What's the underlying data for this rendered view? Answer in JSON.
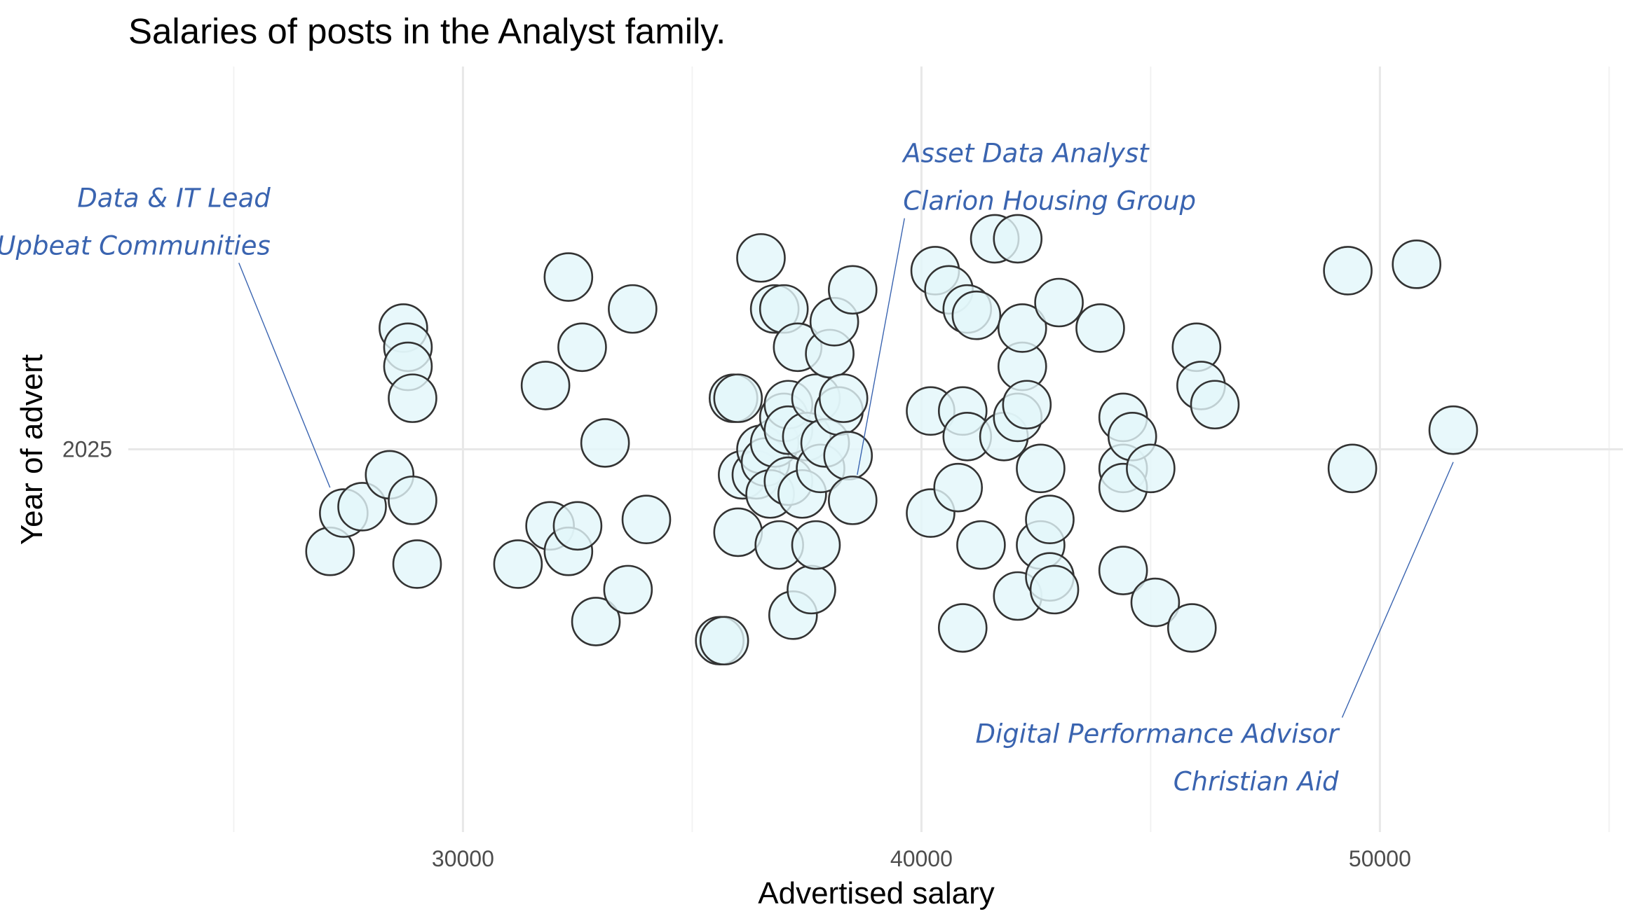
{
  "chart_data": {
    "type": "scatter",
    "title": "Salaries of posts in the Analyst family.",
    "xlabel": "Advertised salary",
    "ylabel": "Year of advert",
    "xlim": [
      22700,
      55300
    ],
    "ylim": [
      2024.4,
      2025.6
    ],
    "x_ticks": [
      30000,
      40000,
      50000
    ],
    "x_tick_labels": [
      "30000",
      "40000",
      "50000"
    ],
    "y_ticks": [
      2025
    ],
    "y_tick_labels": [
      "2025"
    ],
    "grid": true,
    "legend": "none",
    "point_fill": "#e2f6fa",
    "point_stroke": "#333333",
    "annotation_color": "#3a64b0",
    "points": [
      {
        "x": 27100,
        "y": 2024.84
      },
      {
        "x": 27400,
        "y": 2024.9
      },
      {
        "x": 27800,
        "y": 2024.91
      },
      {
        "x": 28400,
        "y": 2024.96
      },
      {
        "x": 28700,
        "y": 2025.19
      },
      {
        "x": 28800,
        "y": 2025.16
      },
      {
        "x": 28800,
        "y": 2025.13
      },
      {
        "x": 28900,
        "y": 2025.08
      },
      {
        "x": 28900,
        "y": 2024.92
      },
      {
        "x": 29000,
        "y": 2024.82
      },
      {
        "x": 31200,
        "y": 2024.82
      },
      {
        "x": 31800,
        "y": 2025.1
      },
      {
        "x": 31900,
        "y": 2024.88
      },
      {
        "x": 32300,
        "y": 2024.84
      },
      {
        "x": 32300,
        "y": 2025.27
      },
      {
        "x": 32500,
        "y": 2024.88
      },
      {
        "x": 32600,
        "y": 2025.16
      },
      {
        "x": 32900,
        "y": 2024.73
      },
      {
        "x": 33100,
        "y": 2025.01
      },
      {
        "x": 33600,
        "y": 2024.78
      },
      {
        "x": 33700,
        "y": 2025.22
      },
      {
        "x": 34000,
        "y": 2024.89
      },
      {
        "x": 35600,
        "y": 2024.7
      },
      {
        "x": 35700,
        "y": 2024.7
      },
      {
        "x": 35900,
        "y": 2025.08
      },
      {
        "x": 36000,
        "y": 2025.08
      },
      {
        "x": 36000,
        "y": 2024.87
      },
      {
        "x": 36100,
        "y": 2024.96
      },
      {
        "x": 36400,
        "y": 2024.96
      },
      {
        "x": 36500,
        "y": 2025.3
      },
      {
        "x": 36500,
        "y": 2025.0
      },
      {
        "x": 36600,
        "y": 2024.98
      },
      {
        "x": 36700,
        "y": 2024.93
      },
      {
        "x": 36800,
        "y": 2025.22
      },
      {
        "x": 36800,
        "y": 2025.01
      },
      {
        "x": 36900,
        "y": 2024.85
      },
      {
        "x": 37000,
        "y": 2025.22
      },
      {
        "x": 37000,
        "y": 2025.05
      },
      {
        "x": 37100,
        "y": 2025.07
      },
      {
        "x": 37100,
        "y": 2025.03
      },
      {
        "x": 37100,
        "y": 2024.95
      },
      {
        "x": 37200,
        "y": 2024.74
      },
      {
        "x": 37300,
        "y": 2025.16
      },
      {
        "x": 37400,
        "y": 2024.93
      },
      {
        "x": 37500,
        "y": 2025.02
      },
      {
        "x": 37600,
        "y": 2024.78
      },
      {
        "x": 37700,
        "y": 2025.08
      },
      {
        "x": 37700,
        "y": 2024.85
      },
      {
        "x": 37800,
        "y": 2024.97
      },
      {
        "x": 37900,
        "y": 2025.01
      },
      {
        "x": 38000,
        "y": 2025.15
      },
      {
        "x": 38100,
        "y": 2025.2
      },
      {
        "x": 38200,
        "y": 2025.06
      },
      {
        "x": 38300,
        "y": 2025.08
      },
      {
        "x": 38400,
        "y": 2024.99
      },
      {
        "x": 38500,
        "y": 2025.25
      },
      {
        "x": 38500,
        "y": 2024.92
      },
      {
        "x": 40200,
        "y": 2025.06
      },
      {
        "x": 40200,
        "y": 2024.9
      },
      {
        "x": 40300,
        "y": 2025.28
      },
      {
        "x": 40600,
        "y": 2025.25
      },
      {
        "x": 40800,
        "y": 2024.94
      },
      {
        "x": 40900,
        "y": 2025.06
      },
      {
        "x": 40900,
        "y": 2024.72
      },
      {
        "x": 41000,
        "y": 2025.02
      },
      {
        "x": 41000,
        "y": 2025.22
      },
      {
        "x": 41200,
        "y": 2025.21
      },
      {
        "x": 41300,
        "y": 2024.85
      },
      {
        "x": 41600,
        "y": 2025.33
      },
      {
        "x": 41800,
        "y": 2025.02
      },
      {
        "x": 42100,
        "y": 2025.05
      },
      {
        "x": 42100,
        "y": 2024.77
      },
      {
        "x": 42100,
        "y": 2025.33
      },
      {
        "x": 42200,
        "y": 2025.13
      },
      {
        "x": 42200,
        "y": 2025.19
      },
      {
        "x": 42300,
        "y": 2025.07
      },
      {
        "x": 42600,
        "y": 2024.97
      },
      {
        "x": 42600,
        "y": 2024.85
      },
      {
        "x": 42800,
        "y": 2024.89
      },
      {
        "x": 42800,
        "y": 2024.8
      },
      {
        "x": 42900,
        "y": 2024.78
      },
      {
        "x": 43000,
        "y": 2025.23
      },
      {
        "x": 43900,
        "y": 2025.19
      },
      {
        "x": 44400,
        "y": 2025.05
      },
      {
        "x": 44400,
        "y": 2024.97
      },
      {
        "x": 44400,
        "y": 2024.94
      },
      {
        "x": 44400,
        "y": 2024.81
      },
      {
        "x": 44600,
        "y": 2025.02
      },
      {
        "x": 45000,
        "y": 2024.97
      },
      {
        "x": 45100,
        "y": 2024.76
      },
      {
        "x": 45900,
        "y": 2024.72
      },
      {
        "x": 46000,
        "y": 2025.16
      },
      {
        "x": 46100,
        "y": 2025.1
      },
      {
        "x": 46400,
        "y": 2025.07
      },
      {
        "x": 49300,
        "y": 2025.28
      },
      {
        "x": 49400,
        "y": 2024.97
      },
      {
        "x": 50800,
        "y": 2025.29
      },
      {
        "x": 51600,
        "y": 2025.03
      }
    ],
    "annotations": [
      {
        "lines": [
          "Data & IT Lead",
          "Upbeat Communities"
        ],
        "label_x": 25800,
        "label_y": 2025.38,
        "anchor": "end",
        "target_x": 27100,
        "target_y": 2024.94
      },
      {
        "lines": [
          "Asset Data Analyst",
          "Clarion Housing Group"
        ],
        "label_x": 39600,
        "label_y": 2025.45,
        "anchor": "start",
        "target_x": 38600,
        "target_y": 2024.96
      },
      {
        "lines": [
          "Digital Performance Advisor",
          "Christian Aid"
        ],
        "label_x": 49100,
        "label_y": 2024.54,
        "anchor": "end",
        "target_x": 51600,
        "target_y": 2024.98
      }
    ]
  }
}
